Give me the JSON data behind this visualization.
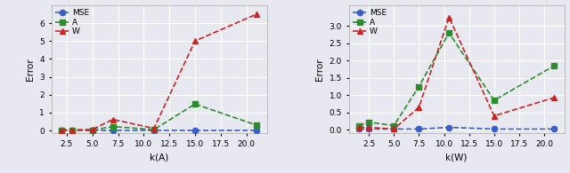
{
  "left": {
    "x": [
      2,
      3,
      5,
      7,
      11,
      15,
      21
    ],
    "MSE": [
      0.02,
      0.02,
      0.02,
      0.02,
      0.02,
      0.02,
      0.02
    ],
    "A": [
      0.03,
      0.03,
      0.03,
      0.22,
      0.05,
      1.48,
      0.3
    ],
    "W": [
      0.03,
      0.03,
      0.06,
      0.62,
      0.12,
      5.0,
      6.5
    ],
    "xlabel": "k(A)",
    "ylabel": "Error",
    "xlim": [
      1.0,
      22.0
    ],
    "ylim": [
      -0.15,
      7.0
    ],
    "yticks": [
      0,
      1,
      2,
      3,
      4,
      5,
      6
    ],
    "xticks": [
      2.5,
      5.0,
      7.5,
      10.0,
      12.5,
      15.0,
      17.5,
      20.0
    ],
    "xticklabels": [
      "2.5",
      "5.0",
      "7.5",
      "10.0",
      "12.5",
      "15.0",
      "17.5",
      "20.0"
    ]
  },
  "right": {
    "x": [
      1.5,
      2.5,
      5,
      7.5,
      10.5,
      15,
      21
    ],
    "MSE": [
      0.02,
      0.02,
      0.02,
      0.02,
      0.07,
      0.02,
      0.02
    ],
    "A": [
      0.12,
      0.22,
      0.12,
      1.25,
      2.8,
      0.85,
      1.85
    ],
    "W": [
      0.07,
      0.07,
      0.02,
      0.65,
      3.25,
      0.4,
      0.93
    ],
    "xlabel": "k(W)",
    "ylabel": "Error",
    "xlim": [
      0.5,
      22.0
    ],
    "ylim": [
      -0.1,
      3.6
    ],
    "yticks": [
      0.0,
      0.5,
      1.0,
      1.5,
      2.0,
      2.5,
      3.0
    ],
    "xticks": [
      2.5,
      5.0,
      7.5,
      10.0,
      12.5,
      15.0,
      17.5,
      20.0
    ],
    "xticklabels": [
      "2.5",
      "5.0",
      "7.5",
      "10.0",
      "12.5",
      "15.0",
      "17.5",
      "20.0"
    ]
  },
  "MSE_color": "#3a5fcd",
  "A_color": "#2e8b2e",
  "W_color": "#cc2222",
  "bg_color": "#e8e8f0",
  "MSE_marker": "o",
  "A_marker": "s",
  "W_marker": "^",
  "linewidth": 1.2,
  "markersize": 4.5
}
